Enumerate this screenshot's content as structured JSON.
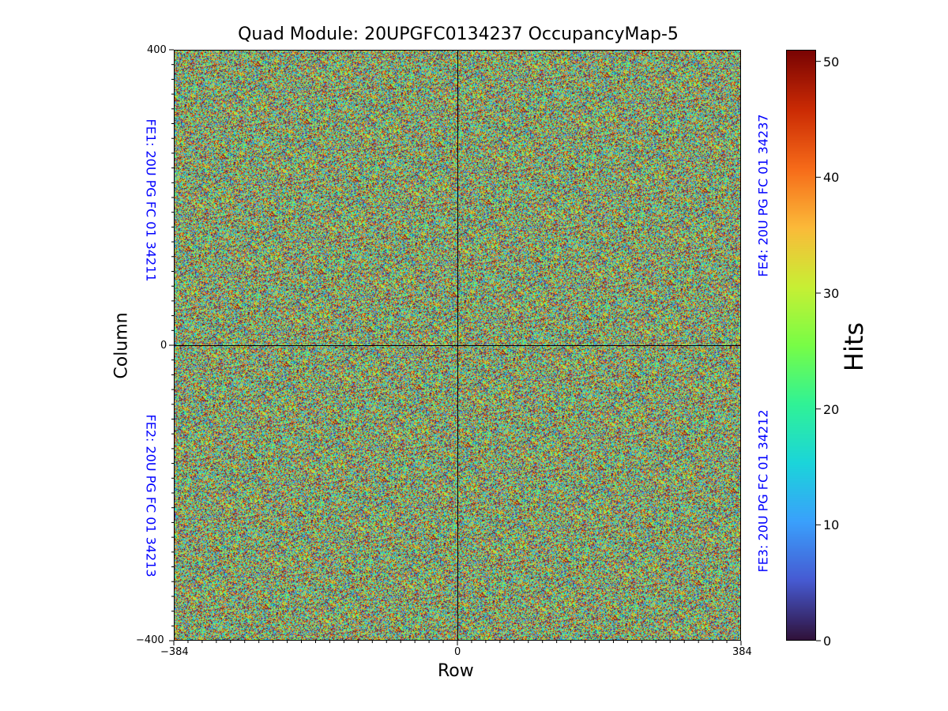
{
  "chart_data": {
    "type": "heatmap",
    "title": "Quad Module: 20UPGFC0134237 OccupancyMap-5",
    "xlabel": "Row",
    "ylabel": "Column",
    "xlim": [
      -384,
      384
    ],
    "ylim": [
      -400,
      400
    ],
    "x_ticks": [
      "−384",
      "0",
      "384"
    ],
    "y_ticks": [
      "400",
      "0",
      "−400"
    ],
    "colorbar": {
      "label": "Hits",
      "range": [
        0,
        51
      ],
      "ticks": [
        "50",
        "40",
        "30",
        "20",
        "10",
        "0"
      ],
      "colormap": "turbo"
    },
    "chip_labels": {
      "fe1": "FE1: 20U PG FC 01 34211",
      "fe2": "FE2: 20U PG FC 01 34213",
      "fe3": "FE3: 20U PG FC 01 34212",
      "fe4": "FE4: 20U PG FC 01 34237"
    },
    "values_description_note": null
  }
}
